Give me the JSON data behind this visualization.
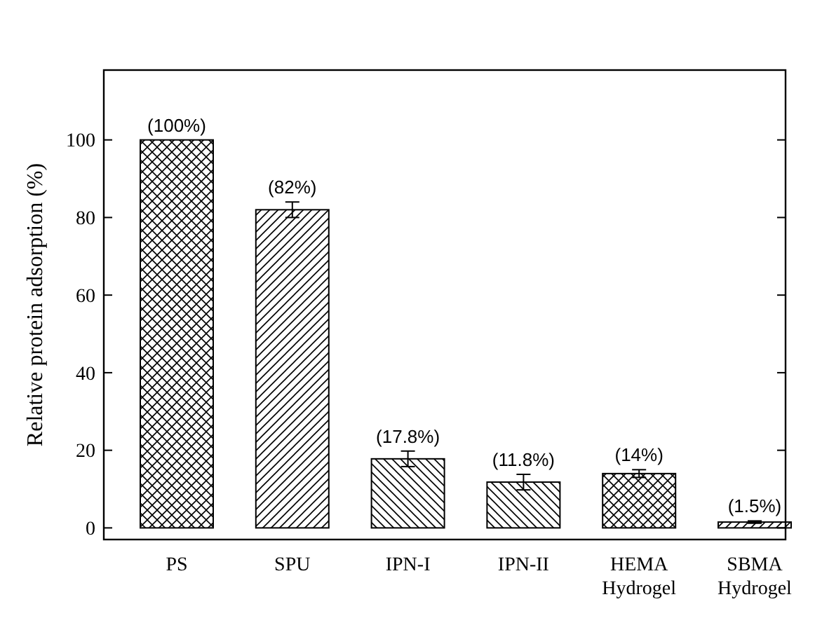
{
  "chart_data": {
    "type": "bar",
    "ylabel": "Relative protein adsorption (%)",
    "categories": [
      "PS",
      "SPU",
      "IPN-I",
      "IPN-II",
      "HEMA Hydrogel",
      "SBMA Hydrogel"
    ],
    "values": [
      100,
      82,
      17.8,
      11.8,
      14,
      1.5
    ],
    "errors": [
      null,
      2,
      2,
      2,
      1,
      0.3
    ],
    "value_labels": [
      "(100%)",
      "(82%)",
      "(17.8%)",
      "(11.8%)",
      "(14%)",
      "(1.5%)"
    ],
    "color": "#000000",
    "ylim": [
      -3,
      118
    ],
    "yticks": [
      0,
      20,
      40,
      60,
      80,
      100
    ],
    "grid": false
  }
}
